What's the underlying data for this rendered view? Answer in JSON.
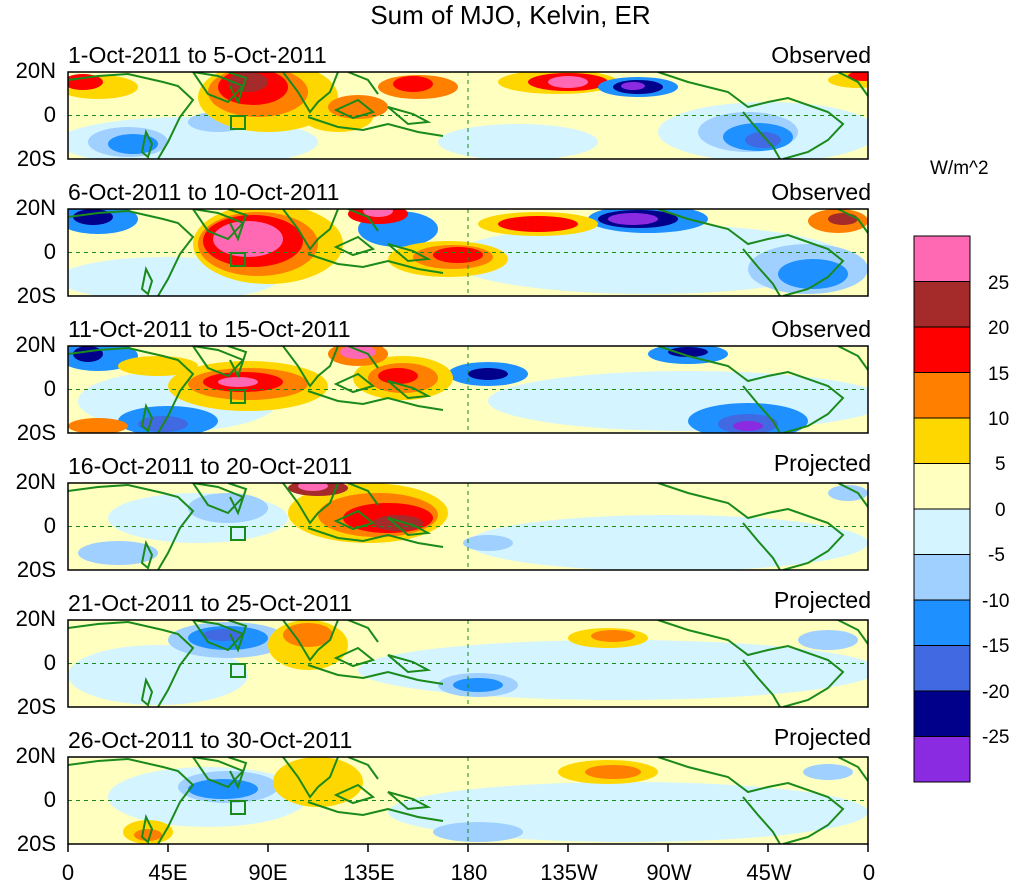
{
  "title": "Sum of MJO, Kelvin, ER",
  "panels": [
    {
      "date_range": "1-Oct-2011 to 5-Oct-2011",
      "status": "Observed"
    },
    {
      "date_range": "6-Oct-2011 to 10-Oct-2011",
      "status": "Observed"
    },
    {
      "date_range": "11-Oct-2011 to 15-Oct-2011",
      "status": "Observed"
    },
    {
      "date_range": "16-Oct-2011 to 20-Oct-2011",
      "status": "Projected"
    },
    {
      "date_range": "21-Oct-2011 to 25-Oct-2011",
      "status": "Projected"
    },
    {
      "date_range": "26-Oct-2011 to 30-Oct-2011",
      "status": "Projected"
    }
  ],
  "lat_labels": [
    "20N",
    "0",
    "20S"
  ],
  "lon_labels": [
    "0",
    "45E",
    "90E",
    "135E",
    "180",
    "135W",
    "90W",
    "45W",
    "0"
  ],
  "colorbar": {
    "unit": "W/m^2",
    "levels": [
      "25",
      "20",
      "15",
      "10",
      "5",
      "0",
      "-5",
      "-10",
      "-15",
      "-20",
      "-25"
    ],
    "colors": [
      "#ff69b4",
      "#a52a2a",
      "#ff0000",
      "#ff7f00",
      "#ffd700",
      "#ffffc0",
      "#d4f4ff",
      "#a0d0ff",
      "#1e90ff",
      "#4169e1",
      "#00008b",
      "#8a2be2"
    ]
  },
  "colors": {
    "coastline": "#1a8a1a",
    "frame": "#000000"
  }
}
